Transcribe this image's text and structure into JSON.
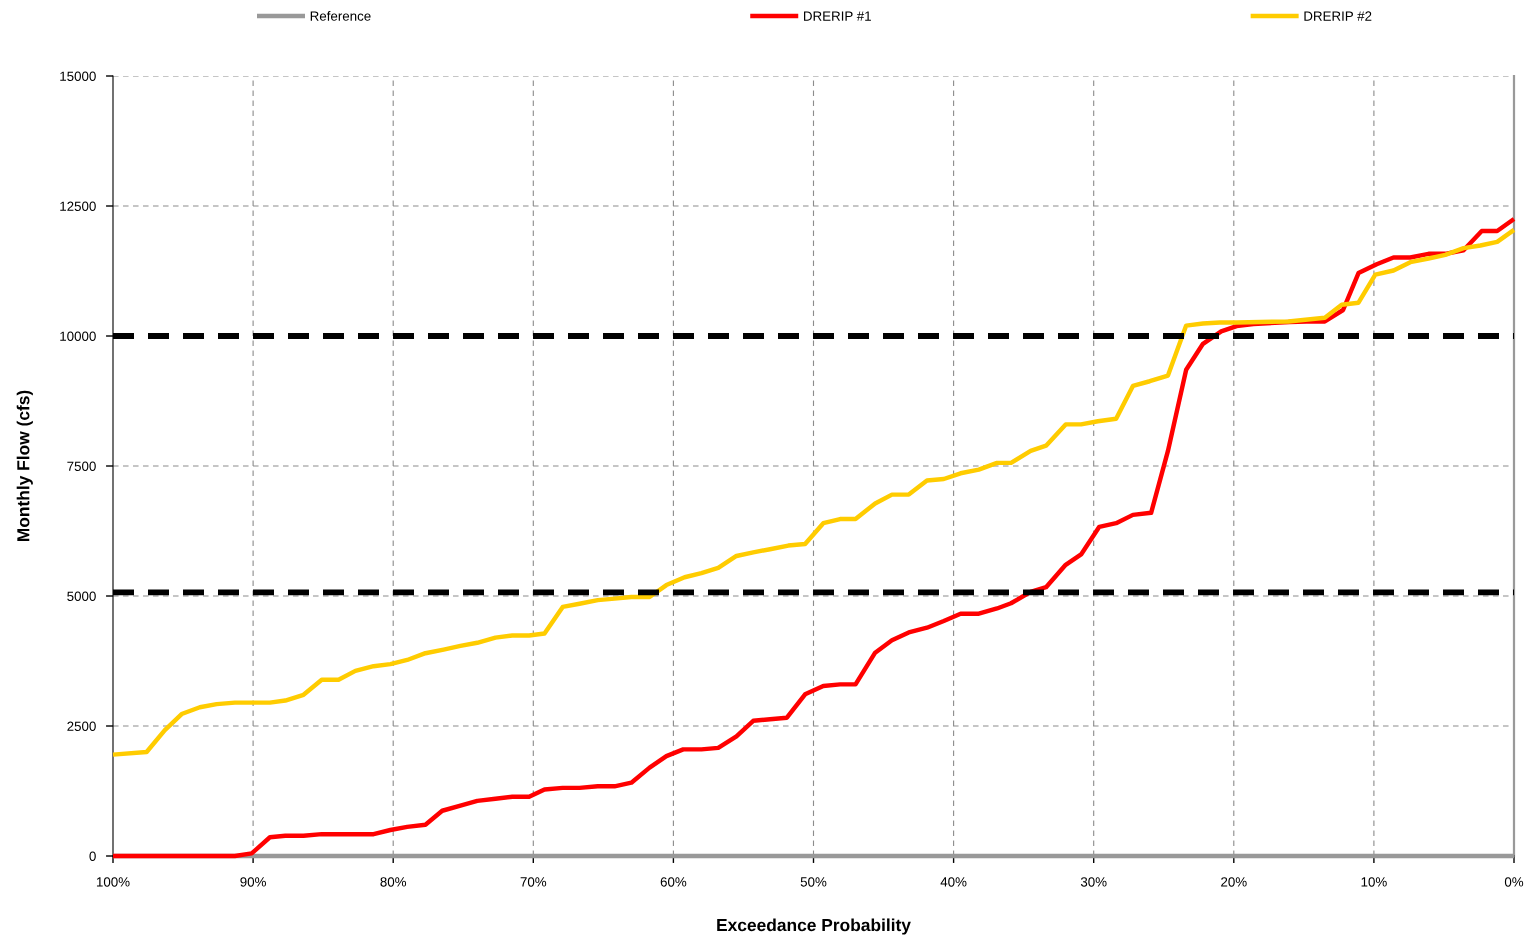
{
  "chart_data": {
    "type": "line",
    "xlabel": "Exceedance Probability",
    "ylabel": "Monthly Flow (cfs)",
    "xlim": [
      100,
      0
    ],
    "xticks": [
      {
        "value": 100,
        "label": "100%"
      },
      {
        "value": 90,
        "label": "90%"
      },
      {
        "value": 80,
        "label": "80%"
      },
      {
        "value": 70,
        "label": "70%"
      },
      {
        "value": 60,
        "label": "60%"
      },
      {
        "value": 50,
        "label": "50%"
      },
      {
        "value": 40,
        "label": "40%"
      },
      {
        "value": 30,
        "label": "30%"
      },
      {
        "value": 20,
        "label": "20%"
      },
      {
        "value": 10,
        "label": "10%"
      },
      {
        "value": 0,
        "label": "0%"
      }
    ],
    "ylim": [
      0,
      15000
    ],
    "yticks": [
      0,
      2500,
      5000,
      7500,
      10000,
      12500,
      15000
    ],
    "grid": true,
    "legend": "top",
    "line_style": "solid",
    "ref_lines": [
      {
        "axis": "y",
        "value": 10000,
        "color": "#000000",
        "line_style": "dashed"
      },
      {
        "axis": "y",
        "value": 5070,
        "color": "#000000",
        "line_style": "dashed"
      }
    ],
    "series": [
      {
        "name": "Reference",
        "color": "#999999",
        "x": [
          100,
          0
        ],
        "values": [
          0,
          0
        ]
      },
      {
        "name": "DRERIP #1",
        "color": "#ff0000",
        "x": [
          100,
          91.3,
          90.1,
          88.8,
          87.7,
          86.4,
          85.1,
          81.4,
          80.2,
          79.0,
          77.7,
          76.5,
          75.2,
          74.0,
          72.7,
          71.5,
          70.3,
          69.2,
          67.9,
          66.7,
          65.4,
          64.2,
          63.0,
          61.7,
          60.5,
          59.3,
          58.0,
          56.8,
          55.5,
          54.3,
          53.1,
          51.9,
          50.6,
          49.3,
          48.1,
          47.0,
          45.6,
          44.4,
          43.2,
          41.9,
          40.7,
          39.5,
          38.2,
          36.9,
          35.9,
          34.5,
          33.4,
          32.0,
          30.9,
          29.6,
          28.4,
          27.2,
          25.9,
          24.7,
          23.4,
          22.2,
          20.9,
          19.8,
          18.6,
          16.0,
          14.8,
          13.5,
          12.2,
          11.1,
          9.8,
          8.6,
          7.4,
          6.1,
          4.9,
          3.6,
          2.3,
          1.2,
          0
        ],
        "values": [
          0,
          0,
          50,
          360,
          390,
          390,
          420,
          420,
          500,
          560,
          600,
          870,
          970,
          1060,
          1100,
          1140,
          1140,
          1280,
          1310,
          1310,
          1340,
          1340,
          1410,
          1700,
          1920,
          2050,
          2050,
          2080,
          2300,
          2600,
          2630,
          2660,
          3110,
          3270,
          3300,
          3300,
          3910,
          4150,
          4300,
          4390,
          4520,
          4660,
          4660,
          4760,
          4860,
          5080,
          5170,
          5600,
          5800,
          6330,
          6400,
          6560,
          6600,
          7790,
          9350,
          9850,
          10090,
          10190,
          10230,
          10270,
          10280,
          10280,
          10500,
          11210,
          11380,
          11510,
          11510,
          11580,
          11580,
          11650,
          12020,
          12020,
          12250
        ]
      },
      {
        "name": "DRERIP #2",
        "color": "#ffcc00",
        "x": [
          100,
          97.6,
          96.3,
          95.1,
          93.8,
          92.6,
          91.3,
          88.8,
          87.7,
          86.4,
          85.1,
          83.9,
          82.7,
          81.4,
          80.2,
          79.0,
          77.7,
          76.4,
          75.2,
          74.0,
          72.7,
          71.5,
          70.3,
          69.2,
          67.9,
          66.7,
          65.4,
          64.2,
          63.0,
          61.7,
          60.5,
          59.2,
          58.0,
          56.8,
          55.5,
          54.3,
          53.1,
          51.8,
          50.6,
          49.3,
          48.1,
          47.0,
          45.6,
          44.4,
          43.2,
          41.9,
          40.7,
          39.5,
          38.2,
          36.9,
          35.9,
          34.5,
          33.4,
          32.0,
          30.9,
          29.7,
          28.4,
          27.2,
          26.0,
          24.7,
          23.4,
          22.2,
          21.0,
          19.8,
          16.1,
          13.5,
          12.3,
          11.1,
          9.9,
          8.6,
          7.4,
          6.1,
          4.9,
          3.6,
          2.4,
          1.2,
          0
        ],
        "values": [
          1950,
          2000,
          2420,
          2730,
          2860,
          2920,
          2950,
          2950,
          2990,
          3100,
          3390,
          3390,
          3560,
          3650,
          3690,
          3770,
          3900,
          3970,
          4040,
          4100,
          4200,
          4240,
          4240,
          4280,
          4790,
          4850,
          4920,
          4950,
          4980,
          4980,
          5210,
          5360,
          5440,
          5540,
          5770,
          5840,
          5900,
          5970,
          6000,
          6400,
          6480,
          6480,
          6780,
          6950,
          6950,
          7220,
          7250,
          7360,
          7430,
          7560,
          7560,
          7790,
          7890,
          8300,
          8300,
          8360,
          8410,
          9040,
          9130,
          9240,
          10200,
          10240,
          10260,
          10260,
          10280,
          10350,
          10600,
          10640,
          11180,
          11260,
          11420,
          11490,
          11560,
          11690,
          11740,
          11810,
          12040
        ]
      }
    ]
  }
}
